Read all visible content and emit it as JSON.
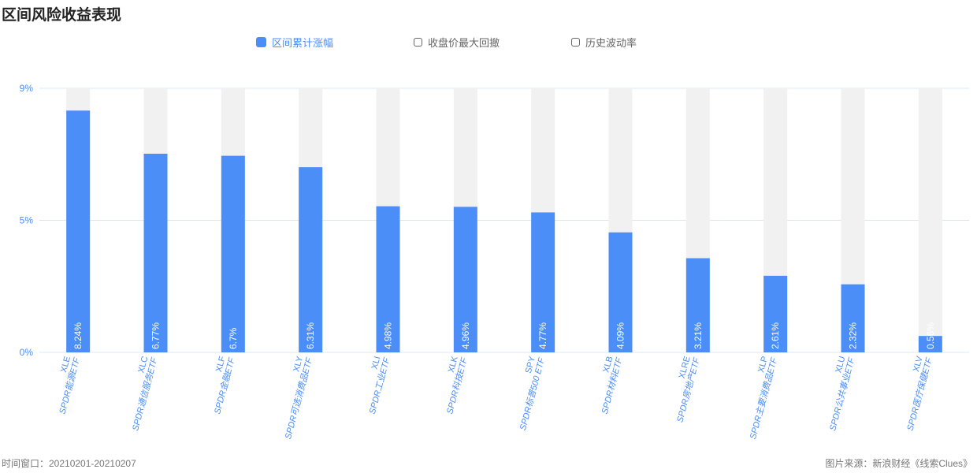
{
  "title": "区间风险收益表现",
  "legend": [
    {
      "label": "区间累计涨幅",
      "active": true
    },
    {
      "label": "收盘价最大回撤",
      "active": false
    },
    {
      "label": "历史波动率",
      "active": false
    }
  ],
  "footer": {
    "left": "时间窗口：20210201-20210207",
    "right": "图片来源：新浪财经《线索Clues》"
  },
  "colors": {
    "bar": "#4b8ef8",
    "track": "#f1f1f1",
    "axis_text": "#4b8ef8",
    "grid": "#dbe9f6"
  },
  "chart_data": {
    "type": "bar",
    "categories": [
      "XLE",
      "XLC",
      "XLF",
      "XLY",
      "XLI",
      "XLK",
      "SPY",
      "XLB",
      "XLRE",
      "XLP",
      "XLU",
      "XLV"
    ],
    "category_names": [
      "SPDR能源ETF",
      "SPDR通信服务ETF",
      "SPDR金融ETF",
      "SPDR可选消费品ETF",
      "SPDR工业ETF",
      "SPDR科技ETF",
      "SPDR标普500 ETF",
      "SPDR材料ETF",
      "SPDR房地产ETF",
      "SPDR主要消费品ETF",
      "SPDR公共事业ETF",
      "SPDR医疗保健ETF"
    ],
    "series": [
      {
        "name": "区间累计涨幅",
        "values": [
          8.24,
          6.77,
          6.7,
          6.31,
          4.98,
          4.96,
          4.77,
          4.09,
          3.21,
          2.61,
          2.32,
          0.56
        ],
        "labels": [
          "8.24%",
          "6.77%",
          "6.7%",
          "6.31%",
          "4.98%",
          "4.96%",
          "4.77%",
          "4.09%",
          "3.21%",
          "2.61%",
          "2.32%",
          "0.56%"
        ]
      }
    ],
    "y_ticks": [
      "0%",
      "5%",
      "9%"
    ],
    "y_tick_values": [
      0,
      4.5,
      9
    ],
    "ylim": [
      0,
      9
    ],
    "grid": true,
    "legend_position": "top"
  }
}
